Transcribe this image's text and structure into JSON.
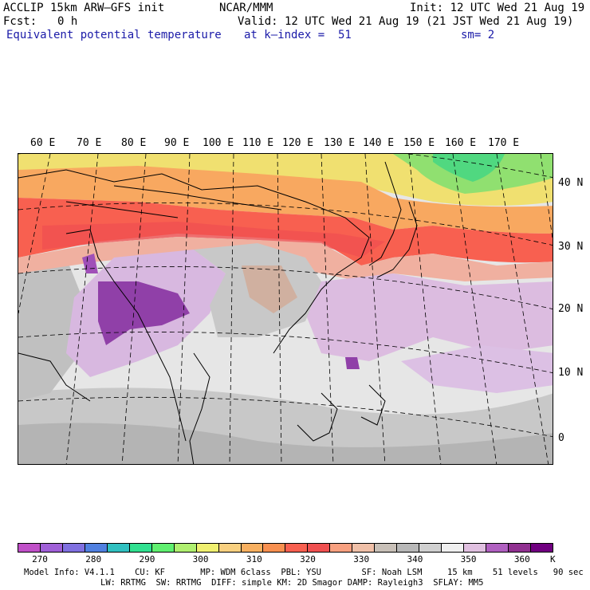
{
  "header": {
    "model": "ACCLIP 15km ARW–GFS init",
    "org": "NCAR/MMM",
    "init": "Init: 12 UTC Wed 21 Aug 19",
    "fcst_label": "Fcst:",
    "fcst_value": "0 h",
    "valid": "Valid: 12 UTC Wed 21 Aug 19 (21 JST Wed 21 Aug 19)",
    "field": "Equivalent potential temperature",
    "level": "at k–index =  51",
    "smoothing": "sm= 2"
  },
  "lon_labels": [
    "60 E",
    "70 E",
    "80 E",
    "90 E",
    "100 E",
    "110 E",
    "120 E",
    "130 E",
    "140 E",
    "150 E",
    "160 E",
    "170 E"
  ],
  "lat_labels": [
    "40 N",
    "30 N",
    "20 N",
    "10 N",
    "0"
  ],
  "colorbar": {
    "colors": [
      "#c050c8",
      "#a060d8",
      "#8070e0",
      "#5080e0",
      "#30c0c0",
      "#30e090",
      "#60f070",
      "#b0f070",
      "#f0f070",
      "#f8d080",
      "#f8b060",
      "#f89050",
      "#f86050",
      "#f05050",
      "#f8a080",
      "#f0c0a8",
      "#c8c0b8",
      "#b8b8b8",
      "#d0d0d0",
      "#f0f0f0",
      "#e0c0e0",
      "#b060c0",
      "#903090",
      "#700080"
    ],
    "tick_labels": [
      "270",
      "280",
      "290",
      "300",
      "310",
      "320",
      "330",
      "340",
      "350",
      "360"
    ],
    "unit": "K"
  },
  "footer": {
    "line1": "Model Info: V4.1.1    CU: KF       MP: WDM 6class  PBL: YSU        SF: Noah LSM     15 km    51 levels   90 sec",
    "line2": "LW: RRTMG  SW: RRTMG  DIFF: simple KM: 2D Smagor DAMP: Rayleigh3  SFLAY: MM5"
  }
}
